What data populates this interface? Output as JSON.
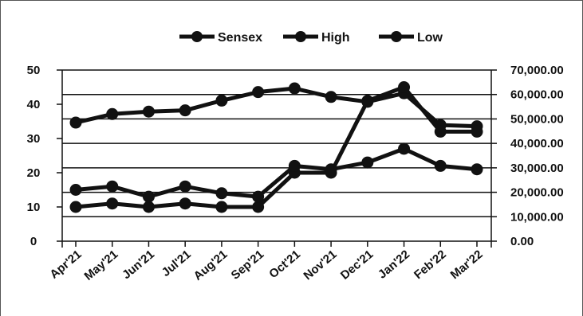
{
  "chart_data": {
    "type": "line",
    "categories": [
      "Apr'21",
      "May'21",
      "Jun'21",
      "Jul'21",
      "Aug'21",
      "Sep'21",
      "Oct'21",
      "Nov'21",
      "Dec'21",
      "Jan'22",
      "Feb'22",
      "Mar'22"
    ],
    "series": [
      {
        "name": "Sensex",
        "axis": "right",
        "values": [
          48500,
          52000,
          53000,
          53500,
          57500,
          61000,
          62500,
          59000,
          57000,
          60500,
          47500,
          47000
        ]
      },
      {
        "name": "High",
        "axis": "left",
        "values": [
          10,
          11,
          10,
          11,
          10,
          10,
          20,
          20,
          41,
          45,
          32,
          32
        ]
      },
      {
        "name": "Low",
        "axis": "left",
        "values": [
          15,
          16,
          13,
          16,
          14,
          13,
          22,
          21,
          23,
          27,
          22,
          21
        ]
      }
    ],
    "y_left_ticks": [
      "0",
      "10",
      "20",
      "30",
      "40",
      "50"
    ],
    "y_right_ticks": [
      "0.00",
      "10,000.00",
      "20,000.00",
      "30,000.00",
      "40,000.00",
      "50,000.00",
      "60,000.00",
      "70,000.00"
    ],
    "ylim_left": [
      0,
      50
    ],
    "ylim_right": [
      0,
      70000
    ],
    "legend_position": "top-center",
    "grid": "horizontal",
    "line_color": "#111111"
  }
}
